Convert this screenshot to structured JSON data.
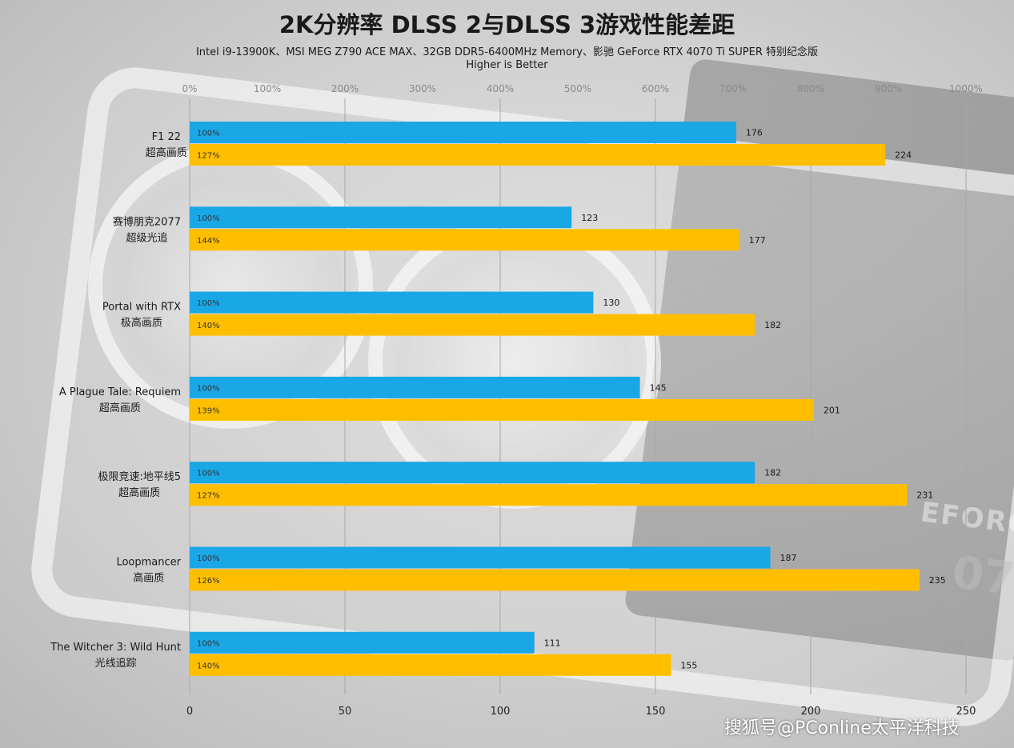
{
  "colors": {
    "dlss2": "#1aa7e6",
    "dlss3": "#ffbf00",
    "grid": "#a8a8a8"
  },
  "watermark": "搜狐号@PConline太平洋科技",
  "chart_data": {
    "type": "bar",
    "orientation": "horizontal",
    "title": "2K分辨率 DLSS 2与DLSS 3游戏性能差距",
    "subtitle": "Intel i9-13900K、MSI MEG Z790 ACE MAX、32GB DDR5-6400MHz Memory、影驰 GeForce RTX 4070 Ti SUPER 特别纪念版",
    "subtitle2": "Higher is Better",
    "categories": [
      {
        "name": "F1 22",
        "setting": "超高画质"
      },
      {
        "name": "赛博朋克2077",
        "setting": "超级光追"
      },
      {
        "name": "Portal with RTX",
        "setting": "极高画质"
      },
      {
        "name": "A Plague Tale: Requiem",
        "setting": "超高画质"
      },
      {
        "name": "极限竞速:地平线5",
        "setting": "超高画质"
      },
      {
        "name": "Loopmancer",
        "setting": "高画质"
      },
      {
        "name": "The Witcher 3: Wild Hunt",
        "setting": "光线追踪"
      }
    ],
    "series": [
      {
        "color": "#1aa7e6",
        "values": [
          176,
          123,
          130,
          145,
          182,
          187,
          111
        ],
        "bar_labels": [
          "100%",
          "100%",
          "100%",
          "100%",
          "100%",
          "100%",
          "100%"
        ]
      },
      {
        "color": "#ffbf00",
        "values": [
          224,
          177,
          182,
          201,
          231,
          235,
          155
        ],
        "bar_labels": [
          "127%",
          "144%",
          "140%",
          "139%",
          "127%",
          "126%",
          "140%"
        ]
      }
    ],
    "x_axis": {
      "range": [
        0,
        250
      ],
      "ticks": [
        "0",
        "50",
        "100",
        "150",
        "200",
        "250"
      ]
    },
    "x2_axis": {
      "range": [
        0,
        1000
      ],
      "ticks": [
        "0%",
        "100%",
        "200%",
        "300%",
        "400%",
        "500%",
        "600%",
        "700%",
        "800%",
        "900%",
        "1000%"
      ]
    },
    "grid": true,
    "legend": "none"
  }
}
